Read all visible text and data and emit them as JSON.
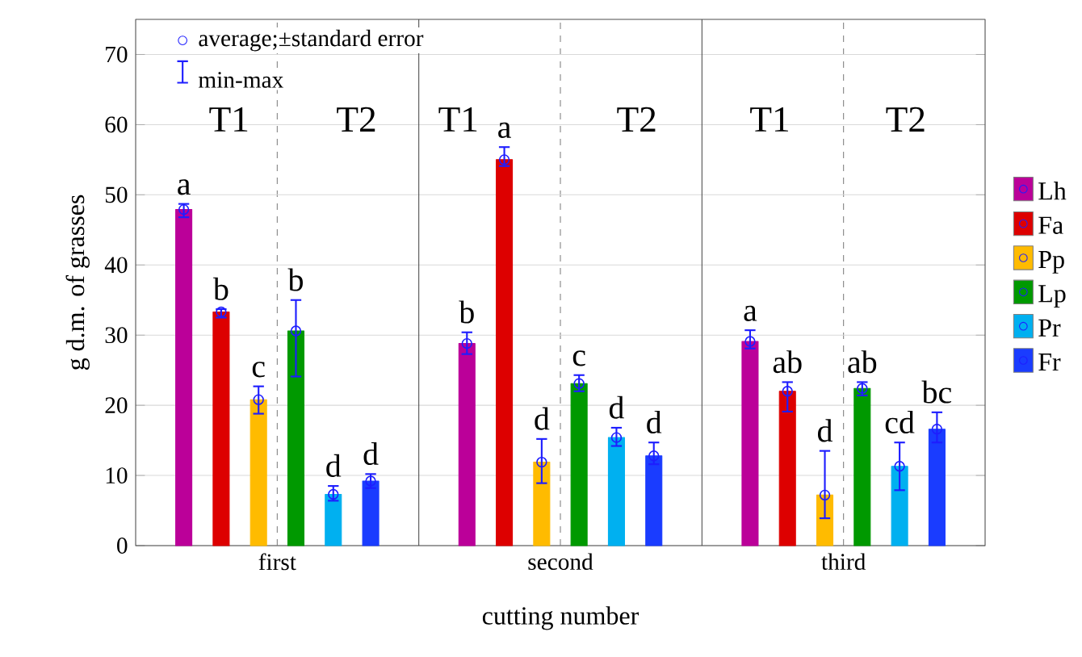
{
  "chart_data": {
    "type": "bar",
    "xlabel": "cutting number",
    "ylabel": "g d.m. of grasses",
    "categories": [
      "first",
      "second",
      "third"
    ],
    "ylim": [
      0,
      75
    ],
    "yticks": [
      0,
      10,
      20,
      30,
      40,
      50,
      60,
      70
    ],
    "grid": true,
    "legend": "right",
    "marker": "circle",
    "annotations": [
      "average;±standard error",
      "min-max",
      "T1",
      "T2",
      "T1",
      "T2",
      "T1",
      "T2"
    ],
    "series": [
      {
        "name": "Lh",
        "color": "#bb0099",
        "values": [
          47.9,
          28.8,
          29.1
        ],
        "errors": [
          [
            46.8,
            48.7
          ],
          [
            27.3,
            30.4
          ],
          [
            28.1,
            30.7
          ]
        ],
        "value_labels": [
          "a",
          "b",
          "a"
        ]
      },
      {
        "name": "Fa",
        "color": "#dd0000",
        "values": [
          33.3,
          55,
          22
        ],
        "errors": [
          [
            32.5,
            33.7
          ],
          [
            54.1,
            56.8
          ],
          [
            19.1,
            23.3
          ]
        ],
        "value_labels": [
          "b",
          "a",
          "ab"
        ]
      },
      {
        "name": "Pp",
        "color": "#ffbb00",
        "values": [
          20.8,
          11.9,
          7.2
        ],
        "errors": [
          [
            18.8,
            22.7
          ],
          [
            8.9,
            15.2
          ],
          [
            3.9,
            13.5
          ]
        ],
        "value_labels": [
          "c",
          "d",
          "d"
        ]
      },
      {
        "name": "Lp",
        "color": "#009900",
        "values": [
          30.6,
          23.1,
          22.4
        ],
        "errors": [
          [
            24.1,
            35
          ],
          [
            22,
            24.3
          ],
          [
            21.4,
            23.3
          ]
        ],
        "value_labels": [
          "b",
          "c",
          "ab"
        ]
      },
      {
        "name": "Pr",
        "color": "#00b0f0",
        "values": [
          7.3,
          15.4,
          11.3
        ],
        "errors": [
          [
            6.4,
            8.5
          ],
          [
            14.2,
            16.8
          ],
          [
            7.9,
            14.7
          ]
        ],
        "value_labels": [
          "d",
          "d",
          "cd"
        ]
      },
      {
        "name": "Fr",
        "color": "#1a3cff",
        "values": [
          9.2,
          12.8,
          16.6
        ],
        "errors": [
          [
            8.2,
            10.2
          ],
          [
            11.6,
            14.7
          ],
          [
            14.7,
            19
          ]
        ],
        "value_labels": [
          "d",
          "d",
          "bc"
        ]
      }
    ]
  }
}
